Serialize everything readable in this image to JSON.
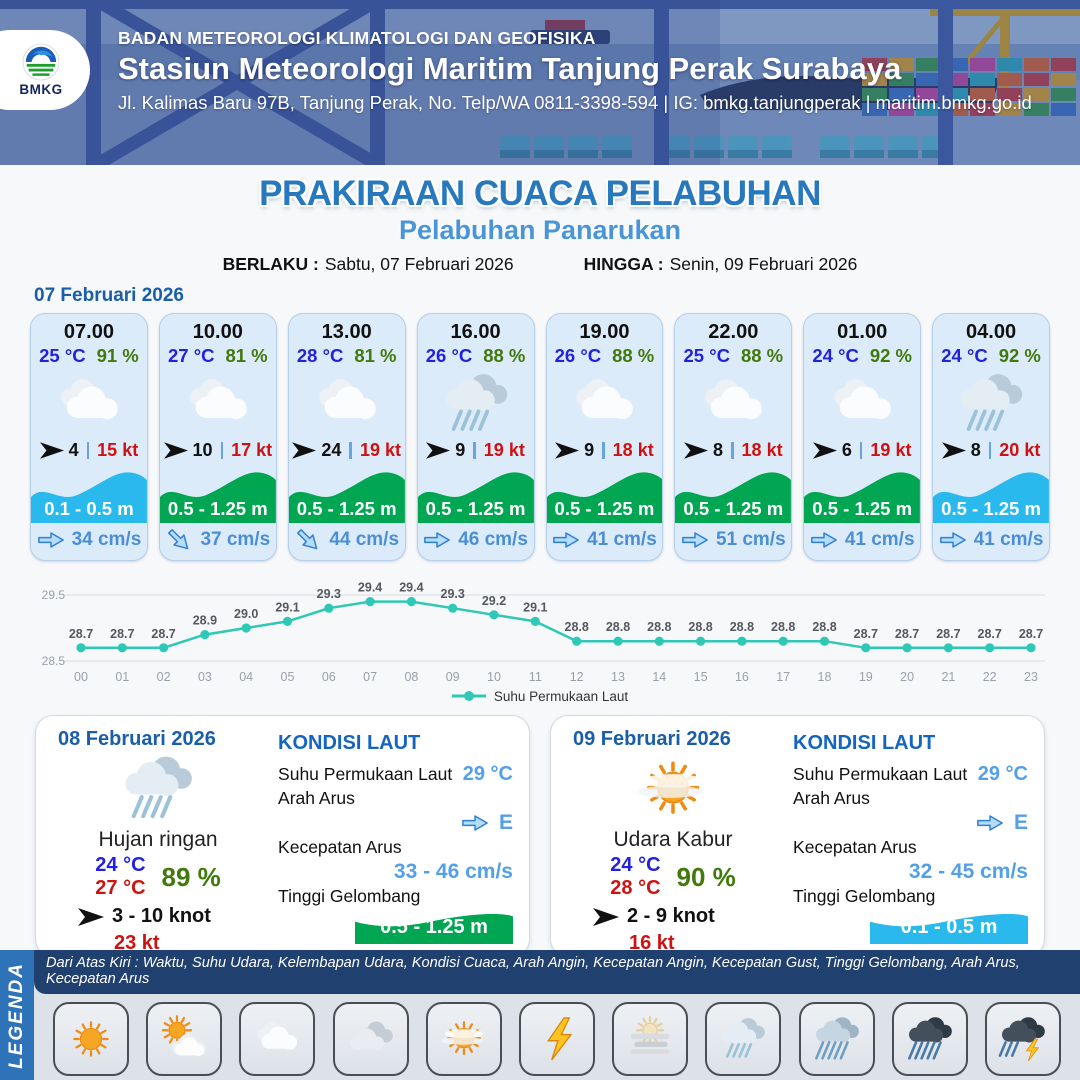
{
  "header": {
    "logo_label": "BMKG",
    "agency": "BADAN METEOROLOGI KLIMATOLOGI DAN GEOFISIKA",
    "station": "Stasiun Meteorologi Maritim Tanjung Perak Surabaya",
    "address": "Jl. Kalimas Baru 97B, Tanjung Perak, No. Telp/WA 0811-3398-594 | IG: bmkg.tanjungperak | maritim.bmkg.go.id"
  },
  "title": {
    "main": "PRAKIRAAN CUACA PELABUHAN",
    "subtitle": "Pelabuhan Panarukan",
    "berlaku_label": "BERLAKU :",
    "berlaku_value": "Sabtu, 07 Februari 2026",
    "hingga_label": "HINGGA :",
    "hingga_value": "Senin, 09 Februari 2026"
  },
  "forecast_date": "07 Februari 2026",
  "cards": [
    {
      "time": "07.00",
      "temp": "25 °C",
      "humidity": "91 %",
      "icon": "berawan",
      "wind_speed": "4",
      "wind_gust": "15 kt",
      "wave_height": "0.1 - 0.5 m",
      "wave_color": "#29b9ed",
      "current_speed": "34 cm/s",
      "current_dir": "E"
    },
    {
      "time": "10.00",
      "temp": "27 °C",
      "humidity": "81 %",
      "icon": "berawan",
      "wind_speed": "10",
      "wind_gust": "17 kt",
      "wave_height": "0.5 - 1.25 m",
      "wave_color": "#00a651",
      "current_speed": "37 cm/s",
      "current_dir": "SE"
    },
    {
      "time": "13.00",
      "temp": "28 °C",
      "humidity": "81 %",
      "icon": "berawan",
      "wind_speed": "24",
      "wind_gust": "19 kt",
      "wave_height": "0.5 - 1.25 m",
      "wave_color": "#00a651",
      "current_speed": "44 cm/s",
      "current_dir": "SE"
    },
    {
      "time": "16.00",
      "temp": "26 °C",
      "humidity": "88 %",
      "icon": "hujan-ringan",
      "wind_speed": "9",
      "wind_gust": "19 kt",
      "wave_height": "0.5 - 1.25 m",
      "wave_color": "#00a651",
      "current_speed": "46 cm/s",
      "current_dir": "E"
    },
    {
      "time": "19.00",
      "temp": "26 °C",
      "humidity": "88 %",
      "icon": "berawan",
      "wind_speed": "9",
      "wind_gust": "18 kt",
      "wave_height": "0.5 - 1.25 m",
      "wave_color": "#00a651",
      "current_speed": "41 cm/s",
      "current_dir": "E"
    },
    {
      "time": "22.00",
      "temp": "25 °C",
      "humidity": "88 %",
      "icon": "berawan",
      "wind_speed": "8",
      "wind_gust": "18 kt",
      "wave_height": "0.5 - 1.25 m",
      "wave_color": "#00a651",
      "current_speed": "51 cm/s",
      "current_dir": "E"
    },
    {
      "time": "01.00",
      "temp": "24 °C",
      "humidity": "92 %",
      "icon": "berawan",
      "wind_speed": "6",
      "wind_gust": "19 kt",
      "wave_height": "0.5 - 1.25 m",
      "wave_color": "#00a651",
      "current_speed": "41 cm/s",
      "current_dir": "E"
    },
    {
      "time": "04.00",
      "temp": "24 °C",
      "humidity": "92 %",
      "icon": "hujan-ringan",
      "wind_speed": "8",
      "wind_gust": "20 kt",
      "wave_height": "0.5 - 1.25 m",
      "wave_color": "#29b9ed",
      "current_speed": "41 cm/s",
      "current_dir": "E"
    }
  ],
  "chart_data": {
    "type": "line",
    "x": [
      "00",
      "01",
      "02",
      "03",
      "04",
      "05",
      "06",
      "07",
      "08",
      "09",
      "10",
      "11",
      "12",
      "13",
      "14",
      "15",
      "16",
      "17",
      "18",
      "19",
      "20",
      "21",
      "22",
      "23"
    ],
    "values": [
      28.7,
      28.7,
      28.7,
      28.9,
      29.0,
      29.1,
      29.3,
      29.4,
      29.4,
      29.3,
      29.2,
      29.1,
      28.8,
      28.8,
      28.8,
      28.8,
      28.8,
      28.8,
      28.8,
      28.7,
      28.7,
      28.7,
      28.7,
      28.7
    ],
    "series_name": "Suhu Permukaan Laut",
    "ylim": [
      28.5,
      29.5
    ],
    "yticks": [
      28.5,
      29.5
    ],
    "line_color": "#2fc7b5",
    "legend_position": "bottom",
    "grid": true
  },
  "day_cards": [
    {
      "date": "08 Februari 2026",
      "icon": "hujan-ringan",
      "condition": "Hujan ringan",
      "temp_night": "24 °C",
      "temp_day": "27 °C",
      "humidity": "89 %",
      "wind_range": "3 - 10 knot",
      "wind_gust": "23 kt",
      "sea_title": "KONDISI LAUT",
      "sst_label": "Suhu Permukaan Laut",
      "sst_value": "29 °C",
      "current_dir_label": "Arah Arus",
      "current_dir_value": "E",
      "current_speed_label": "Kecepatan Arus",
      "current_speed_value": "33 - 46 cm/s",
      "wave_label": "Tinggi Gelombang",
      "wave_value": "0.5 - 1.25 m",
      "wave_color": "#00a651"
    },
    {
      "date": "09 Februari 2026",
      "icon": "udara-kabur",
      "condition": "Udara Kabur",
      "temp_night": "24 °C",
      "temp_day": "28 °C",
      "humidity": "90 %",
      "wind_range": "2 - 9 knot",
      "wind_gust": "16 kt",
      "sea_title": "KONDISI LAUT",
      "sst_label": "Suhu Permukaan Laut",
      "sst_value": "29 °C",
      "current_dir_label": "Arah Arus",
      "current_dir_value": "E",
      "current_speed_label": "Kecepatan Arus",
      "current_speed_value": "32 - 45 cm/s",
      "wave_label": "Tinggi Gelombang",
      "wave_value": "0.1 - 0.5 m",
      "wave_color": "#29b9ed"
    }
  ],
  "legend": {
    "title": "LEGENDA",
    "note": "Dari Atas Kiri : Waktu, Suhu Udara, Kelembapan Udara, Kondisi Cuaca, Arah Angin, Kecepatan Angin, Kecepatan Gust, Tinggi Gelombang, Arah Arus, Kecepatan Arus",
    "items": [
      {
        "label": "Cerah",
        "icon": "cerah"
      },
      {
        "label": "Cerah Berawan",
        "icon": "cerah-berawan"
      },
      {
        "label": "Berawan",
        "icon": "berawan"
      },
      {
        "label": "Berawan Tebal",
        "icon": "berawan-tebal"
      },
      {
        "label": "Udara Kabur",
        "icon": "udara-kabur"
      },
      {
        "label": "Petir",
        "icon": "petir"
      },
      {
        "label": "Kabut",
        "icon": "kabut"
      },
      {
        "label": "Hujan Ringan",
        "icon": "hujan-ringan"
      },
      {
        "label": "Hujan Sedang",
        "icon": "hujan-sedang"
      },
      {
        "label": "Hujan Lebat",
        "icon": "hujan-lebat"
      },
      {
        "label": "Hujan Petir",
        "icon": "hujan-petir"
      }
    ]
  }
}
